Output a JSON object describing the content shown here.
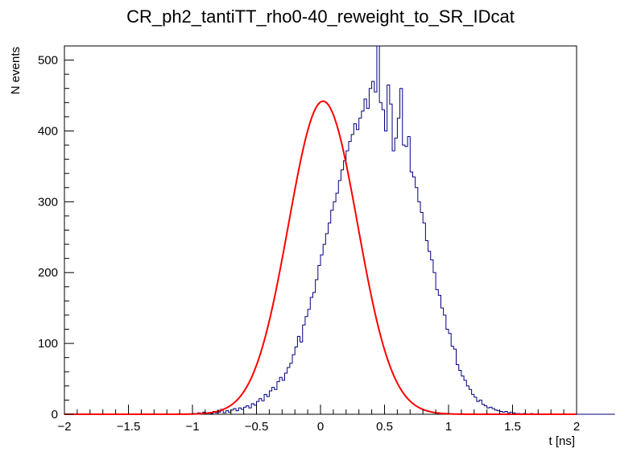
{
  "chart_data": {
    "type": "histogram",
    "title": "CR_ph2_tantiTT_rho0-40_reweight_to_SR_IDcat",
    "xlabel": "t [ns]",
    "ylabel": "N events",
    "xlim": [
      -2,
      2
    ],
    "ylim": [
      0,
      520
    ],
    "x_ticks": [
      -2,
      -1.5,
      -1,
      -0.5,
      0,
      0.5,
      1,
      1.5,
      2
    ],
    "x_tick_labels": [
      "−2",
      "−1.5",
      "−1",
      "−0.5",
      "0",
      "0.5",
      "1",
      "1.5",
      "2"
    ],
    "y_ticks": [
      0,
      100,
      200,
      300,
      400,
      500
    ],
    "y_tick_labels": [
      "0",
      "100",
      "200",
      "300",
      "400",
      "500"
    ],
    "grid": false,
    "histogram": {
      "bin_width": 0.02,
      "x_start": -2.0,
      "color": "#000080",
      "counts": [
        0,
        0,
        0,
        0,
        0,
        0,
        0,
        0,
        0,
        0,
        0,
        0,
        0,
        0,
        0,
        0,
        0,
        0,
        0,
        0,
        0,
        0,
        0,
        0,
        0,
        0,
        0,
        0,
        0,
        0,
        0,
        0,
        0,
        0,
        0,
        0,
        0,
        0,
        0,
        0,
        0,
        0,
        0,
        0,
        0,
        0,
        0,
        0,
        0,
        0,
        1,
        0,
        2,
        1,
        3,
        1,
        2,
        1,
        4,
        2,
        3,
        7,
        2,
        5,
        3,
        6,
        8,
        5,
        9,
        7,
        10,
        12,
        9,
        15,
        13,
        18,
        22,
        19,
        28,
        25,
        33,
        38,
        35,
        46,
        52,
        48,
        58,
        66,
        72,
        84,
        95,
        110,
        102,
        126,
        138,
        148,
        165,
        172,
        190,
        210,
        225,
        240,
        255,
        270,
        288,
        300,
        312,
        330,
        345,
        358,
        372,
        385,
        395,
        410,
        402,
        418,
        428,
        445,
        432,
        460,
        470,
        455,
        520,
        440,
        430,
        400,
        465,
        438,
        372,
        390,
        418,
        460,
        380,
        378,
        392,
        342,
        335,
        320,
        300,
        285,
        270,
        245,
        230,
        218,
        200,
        176,
        168,
        150,
        140,
        120,
        114,
        96,
        92,
        70,
        62,
        54,
        48,
        40,
        35,
        28,
        24,
        18,
        20,
        14,
        12,
        9,
        10,
        8,
        6,
        5,
        4,
        3,
        4,
        2,
        3,
        2,
        1,
        1,
        0,
        1,
        0,
        0,
        1,
        0,
        0,
        0,
        0,
        0,
        0,
        0,
        0,
        0,
        0,
        0,
        0,
        0,
        0,
        0,
        0,
        0,
        0,
        0,
        0,
        0,
        0,
        0,
        0,
        0,
        0,
        0,
        0,
        0,
        0,
        0,
        0
      ]
    },
    "fit": {
      "function": "gaussian",
      "color": "#ff0000",
      "amplitude": 442,
      "mean": 0.02,
      "sigma": 0.27
    }
  }
}
